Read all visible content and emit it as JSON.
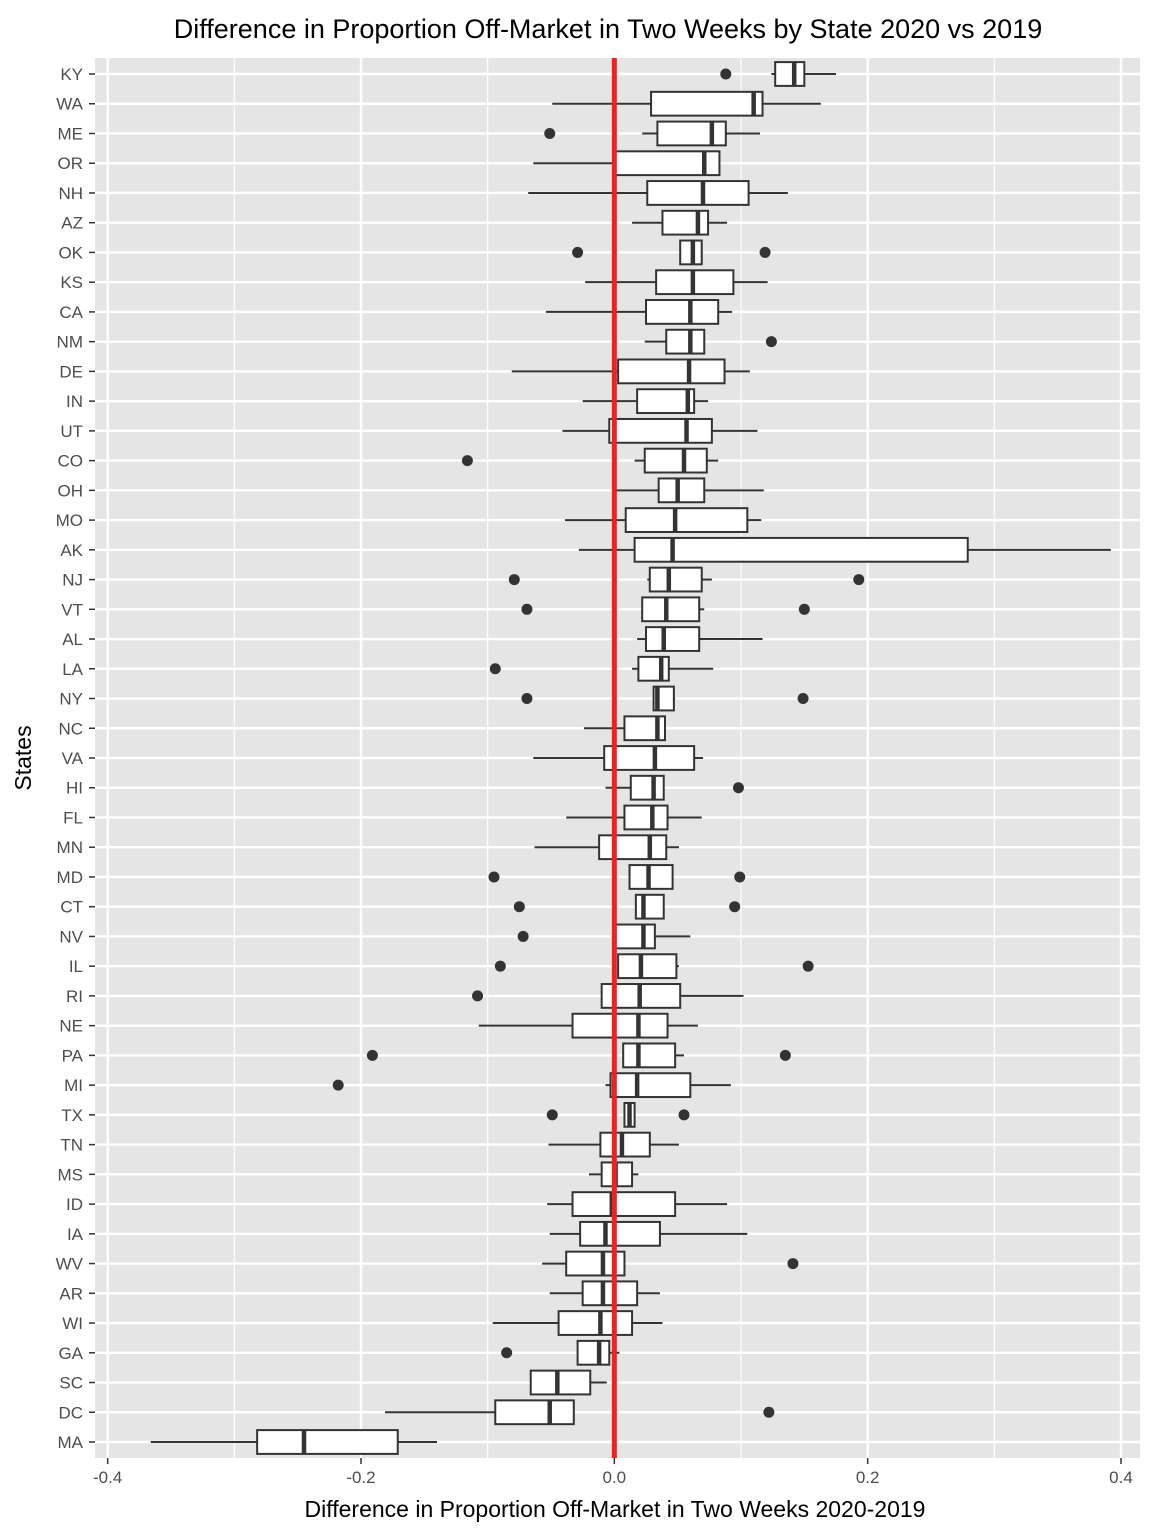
{
  "chart_data": {
    "type": "boxplot",
    "orientation": "horizontal",
    "title": "Difference in Proportion Off-Market in Two Weeks by State 2020 vs 2019",
    "xlabel": "Difference in Proportion Off-Market in Two Weeks 2020-2019",
    "ylabel": "States",
    "xlim": [
      -0.41,
      0.415
    ],
    "x_ticks": [
      -0.4,
      -0.2,
      0.0,
      0.2,
      0.4
    ],
    "x_tick_labels": [
      "-0.4",
      "-0.2",
      "0.0",
      "0.2",
      "0.4"
    ],
    "reference_line": {
      "x": 0.0,
      "color": "#ee2222"
    },
    "panel_background": "#e5e5e5",
    "grid_color": "#ffffff",
    "grid": true,
    "legend": "none",
    "states": [
      {
        "name": "KY",
        "whisker_low": 0.124,
        "q1": 0.127,
        "median": 0.142,
        "q3": 0.15,
        "whisker_high": 0.175,
        "outliers": [
          0.088
        ]
      },
      {
        "name": "WA",
        "whisker_low": -0.049,
        "q1": 0.029,
        "median": 0.11,
        "q3": 0.117,
        "whisker_high": 0.163,
        "outliers": []
      },
      {
        "name": "ME",
        "whisker_low": 0.022,
        "q1": 0.034,
        "median": 0.077,
        "q3": 0.088,
        "whisker_high": 0.115,
        "outliers": [
          -0.051
        ]
      },
      {
        "name": "OR",
        "whisker_low": -0.064,
        "q1": 0.0,
        "median": 0.071,
        "q3": 0.083,
        "whisker_high": 0.083,
        "outliers": []
      },
      {
        "name": "NH",
        "whisker_low": -0.068,
        "q1": 0.026,
        "median": 0.07,
        "q3": 0.106,
        "whisker_high": 0.137,
        "outliers": []
      },
      {
        "name": "AZ",
        "whisker_low": 0.014,
        "q1": 0.038,
        "median": 0.066,
        "q3": 0.074,
        "whisker_high": 0.089,
        "outliers": []
      },
      {
        "name": "OK",
        "whisker_low": 0.052,
        "q1": 0.052,
        "median": 0.062,
        "q3": 0.069,
        "whisker_high": 0.069,
        "outliers": [
          -0.029,
          0.119
        ]
      },
      {
        "name": "KS",
        "whisker_low": -0.023,
        "q1": 0.033,
        "median": 0.062,
        "q3": 0.094,
        "whisker_high": 0.121,
        "outliers": []
      },
      {
        "name": "CA",
        "whisker_low": -0.054,
        "q1": 0.025,
        "median": 0.06,
        "q3": 0.082,
        "whisker_high": 0.093,
        "outliers": []
      },
      {
        "name": "NM",
        "whisker_low": 0.024,
        "q1": 0.041,
        "median": 0.06,
        "q3": 0.071,
        "whisker_high": 0.071,
        "outliers": [
          0.124
        ]
      },
      {
        "name": "DE",
        "whisker_low": -0.081,
        "q1": 0.003,
        "median": 0.059,
        "q3": 0.087,
        "whisker_high": 0.107,
        "outliers": []
      },
      {
        "name": "IN",
        "whisker_low": -0.025,
        "q1": 0.018,
        "median": 0.058,
        "q3": 0.063,
        "whisker_high": 0.074,
        "outliers": []
      },
      {
        "name": "UT",
        "whisker_low": -0.041,
        "q1": -0.004,
        "median": 0.057,
        "q3": 0.077,
        "whisker_high": 0.113,
        "outliers": []
      },
      {
        "name": "CO",
        "whisker_low": 0.016,
        "q1": 0.024,
        "median": 0.055,
        "q3": 0.073,
        "whisker_high": 0.082,
        "outliers": [
          -0.116
        ]
      },
      {
        "name": "OH",
        "whisker_low": 0.001,
        "q1": 0.035,
        "median": 0.05,
        "q3": 0.071,
        "whisker_high": 0.118,
        "outliers": []
      },
      {
        "name": "MO",
        "whisker_low": -0.039,
        "q1": 0.009,
        "median": 0.048,
        "q3": 0.105,
        "whisker_high": 0.116,
        "outliers": []
      },
      {
        "name": "AK",
        "whisker_low": -0.028,
        "q1": 0.016,
        "median": 0.046,
        "q3": 0.279,
        "whisker_high": 0.392,
        "outliers": []
      },
      {
        "name": "NJ",
        "whisker_low": 0.026,
        "q1": 0.028,
        "median": 0.043,
        "q3": 0.069,
        "whisker_high": 0.077,
        "outliers": [
          -0.079,
          0.193
        ]
      },
      {
        "name": "VT",
        "whisker_low": 0.022,
        "q1": 0.022,
        "median": 0.041,
        "q3": 0.067,
        "whisker_high": 0.071,
        "outliers": [
          -0.069,
          0.15
        ]
      },
      {
        "name": "AL",
        "whisker_low": 0.018,
        "q1": 0.025,
        "median": 0.039,
        "q3": 0.067,
        "whisker_high": 0.117,
        "outliers": []
      },
      {
        "name": "LA",
        "whisker_low": 0.014,
        "q1": 0.019,
        "median": 0.037,
        "q3": 0.043,
        "whisker_high": 0.078,
        "outliers": [
          -0.094
        ]
      },
      {
        "name": "NY",
        "whisker_low": 0.031,
        "q1": 0.031,
        "median": 0.034,
        "q3": 0.047,
        "whisker_high": 0.048,
        "outliers": [
          -0.069,
          0.149
        ]
      },
      {
        "name": "NC",
        "whisker_low": -0.024,
        "q1": 0.008,
        "median": 0.034,
        "q3": 0.04,
        "whisker_high": 0.04,
        "outliers": []
      },
      {
        "name": "VA",
        "whisker_low": -0.064,
        "q1": -0.008,
        "median": 0.032,
        "q3": 0.063,
        "whisker_high": 0.07,
        "outliers": []
      },
      {
        "name": "HI",
        "whisker_low": -0.007,
        "q1": 0.013,
        "median": 0.031,
        "q3": 0.039,
        "whisker_high": 0.039,
        "outliers": [
          0.098
        ]
      },
      {
        "name": "FL",
        "whisker_low": -0.038,
        "q1": 0.008,
        "median": 0.03,
        "q3": 0.042,
        "whisker_high": 0.069,
        "outliers": []
      },
      {
        "name": "MN",
        "whisker_low": -0.063,
        "q1": -0.012,
        "median": 0.028,
        "q3": 0.041,
        "whisker_high": 0.051,
        "outliers": []
      },
      {
        "name": "MD",
        "whisker_low": 0.012,
        "q1": 0.012,
        "median": 0.027,
        "q3": 0.046,
        "whisker_high": 0.046,
        "outliers": [
          -0.095,
          0.099
        ]
      },
      {
        "name": "CT",
        "whisker_low": 0.017,
        "q1": 0.017,
        "median": 0.023,
        "q3": 0.039,
        "whisker_high": 0.039,
        "outliers": [
          -0.075,
          0.095
        ]
      },
      {
        "name": "NV",
        "whisker_low": -0.002,
        "q1": 0.001,
        "median": 0.023,
        "q3": 0.032,
        "whisker_high": 0.06,
        "outliers": [
          -0.072
        ]
      },
      {
        "name": "IL",
        "whisker_low": 0.003,
        "q1": 0.003,
        "median": 0.021,
        "q3": 0.049,
        "whisker_high": 0.051,
        "outliers": [
          -0.09,
          0.153
        ]
      },
      {
        "name": "RI",
        "whisker_low": -0.01,
        "q1": -0.01,
        "median": 0.02,
        "q3": 0.052,
        "whisker_high": 0.102,
        "outliers": [
          -0.108
        ]
      },
      {
        "name": "NE",
        "whisker_low": -0.107,
        "q1": -0.033,
        "median": 0.019,
        "q3": 0.042,
        "whisker_high": 0.066,
        "outliers": []
      },
      {
        "name": "PA",
        "whisker_low": 0.007,
        "q1": 0.007,
        "median": 0.019,
        "q3": 0.048,
        "whisker_high": 0.055,
        "outliers": [
          -0.191,
          0.135
        ]
      },
      {
        "name": "MI",
        "whisker_low": -0.007,
        "q1": -0.003,
        "median": 0.018,
        "q3": 0.06,
        "whisker_high": 0.092,
        "outliers": [
          -0.218
        ]
      },
      {
        "name": "TX",
        "whisker_low": 0.008,
        "q1": 0.008,
        "median": 0.012,
        "q3": 0.016,
        "whisker_high": 0.016,
        "outliers": [
          -0.049,
          0.055
        ]
      },
      {
        "name": "TN",
        "whisker_low": -0.052,
        "q1": -0.011,
        "median": 0.006,
        "q3": 0.028,
        "whisker_high": 0.051,
        "outliers": []
      },
      {
        "name": "MS",
        "whisker_low": -0.02,
        "q1": -0.01,
        "median": 0.001,
        "q3": 0.014,
        "whisker_high": 0.019,
        "outliers": []
      },
      {
        "name": "ID",
        "whisker_low": -0.053,
        "q1": -0.033,
        "median": -0.002,
        "q3": 0.048,
        "whisker_high": 0.089,
        "outliers": []
      },
      {
        "name": "IA",
        "whisker_low": -0.051,
        "q1": -0.027,
        "median": -0.007,
        "q3": 0.036,
        "whisker_high": 0.105,
        "outliers": []
      },
      {
        "name": "WV",
        "whisker_low": -0.057,
        "q1": -0.038,
        "median": -0.009,
        "q3": 0.008,
        "whisker_high": 0.008,
        "outliers": [
          0.141
        ]
      },
      {
        "name": "AR",
        "whisker_low": -0.051,
        "q1": -0.025,
        "median": -0.009,
        "q3": 0.018,
        "whisker_high": 0.036,
        "outliers": []
      },
      {
        "name": "WI",
        "whisker_low": -0.096,
        "q1": -0.044,
        "median": -0.011,
        "q3": 0.014,
        "whisker_high": 0.038,
        "outliers": []
      },
      {
        "name": "GA",
        "whisker_low": -0.029,
        "q1": -0.029,
        "median": -0.012,
        "q3": -0.004,
        "whisker_high": 0.004,
        "outliers": [
          -0.085
        ]
      },
      {
        "name": "SC",
        "whisker_low": -0.066,
        "q1": -0.066,
        "median": -0.045,
        "q3": -0.019,
        "whisker_high": -0.006,
        "outliers": []
      },
      {
        "name": "DC",
        "whisker_low": -0.181,
        "q1": -0.094,
        "median": -0.051,
        "q3": -0.032,
        "whisker_high": -0.032,
        "outliers": [
          0.122
        ]
      },
      {
        "name": "MA",
        "whisker_low": -0.366,
        "q1": -0.282,
        "median": -0.245,
        "q3": -0.171,
        "whisker_high": -0.14,
        "outliers": []
      }
    ]
  }
}
